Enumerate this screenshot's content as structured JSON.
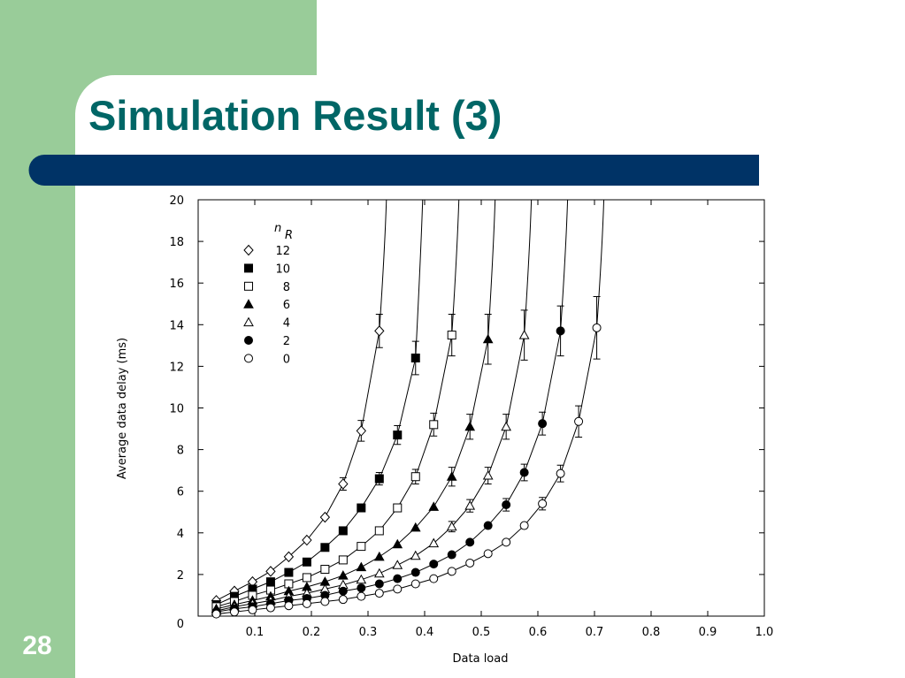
{
  "slide": {
    "title": "Simulation Result (3)",
    "number": 28
  },
  "chart_data": {
    "type": "line",
    "x_label": "Data load",
    "y_label": "Average data delay (ms)",
    "legend_title": [
      "n",
      "R"
    ],
    "xlim": [
      0,
      1
    ],
    "ylim": [
      0,
      20
    ],
    "xticks": [
      0.1,
      0.2,
      0.3,
      0.4,
      0.5,
      0.6,
      0.7,
      0.8,
      0.9,
      {
        "value": 1,
        "label": "1.0"
      }
    ],
    "yticks": [
      0,
      2,
      4,
      6,
      8,
      10,
      12,
      14,
      16,
      18,
      20
    ],
    "x": [
      0.032,
      0.064,
      0.096,
      0.128,
      0.16,
      0.192,
      0.224,
      0.256,
      0.288,
      0.32,
      0.352,
      0.384,
      0.416,
      0.448,
      0.48,
      0.512,
      0.544,
      0.576,
      0.608,
      0.64,
      0.672,
      0.704
    ],
    "series": [
      {
        "name": "12",
        "color": "#000000",
        "marker": "diamond",
        "filled": false,
        "values": [
          0.75,
          1.2,
          1.65,
          2.15,
          2.85,
          3.65,
          4.75,
          6.35,
          8.9,
          13.7,
          null,
          null,
          null,
          null,
          null,
          null,
          null,
          null,
          null,
          null,
          null,
          null
        ],
        "errors": [
          null,
          null,
          null,
          null,
          null,
          null,
          null,
          0.3,
          0.5,
          0.8,
          null,
          null,
          null,
          null,
          null,
          null,
          null,
          null,
          null,
          null,
          null,
          null
        ]
      },
      {
        "name": "10",
        "color": "#000000",
        "marker": "square",
        "filled": true,
        "values": [
          0.55,
          0.95,
          1.3,
          1.65,
          2.1,
          2.6,
          3.3,
          4.1,
          5.2,
          6.6,
          8.7,
          12.4,
          null,
          null,
          null,
          null,
          null,
          null,
          null,
          null,
          null,
          null
        ],
        "errors": [
          null,
          null,
          null,
          null,
          null,
          null,
          null,
          null,
          null,
          0.3,
          0.45,
          0.8,
          null,
          null,
          null,
          null,
          null,
          null,
          null,
          null,
          null,
          null
        ]
      },
      {
        "name": "8",
        "color": "#000000",
        "marker": "square",
        "filled": false,
        "values": [
          0.45,
          0.7,
          1.0,
          1.25,
          1.55,
          1.85,
          2.25,
          2.7,
          3.35,
          4.1,
          5.2,
          6.7,
          9.2,
          13.5,
          null,
          null,
          null,
          null,
          null,
          null,
          null,
          null
        ],
        "errors": [
          null,
          null,
          null,
          null,
          null,
          null,
          null,
          null,
          null,
          null,
          null,
          0.35,
          0.55,
          1.0,
          null,
          null,
          null,
          null,
          null,
          null,
          null,
          null
        ]
      },
      {
        "name": "6",
        "color": "#000000",
        "marker": "triangle",
        "filled": true,
        "values": [
          0.35,
          0.55,
          0.75,
          0.95,
          1.2,
          1.4,
          1.65,
          1.95,
          2.35,
          2.85,
          3.45,
          4.25,
          5.25,
          6.7,
          9.1,
          13.3,
          null,
          null,
          null,
          null,
          null,
          null
        ],
        "errors": [
          null,
          null,
          null,
          null,
          null,
          null,
          null,
          null,
          null,
          null,
          null,
          null,
          null,
          0.45,
          0.6,
          1.2,
          null,
          null,
          null,
          null,
          null,
          null
        ]
      },
      {
        "name": "4",
        "color": "#000000",
        "marker": "triangle",
        "filled": false,
        "values": [
          0.25,
          0.45,
          0.6,
          0.75,
          0.95,
          1.1,
          1.3,
          1.5,
          1.75,
          2.05,
          2.45,
          2.9,
          3.5,
          4.3,
          5.3,
          6.75,
          9.1,
          13.5,
          null,
          null,
          null,
          null
        ],
        "errors": [
          null,
          null,
          null,
          null,
          null,
          null,
          null,
          null,
          null,
          null,
          null,
          null,
          null,
          0.25,
          0.3,
          0.4,
          0.6,
          1.2,
          null,
          null,
          null,
          null
        ]
      },
      {
        "name": "2",
        "color": "#000000",
        "marker": "circle",
        "filled": true,
        "values": [
          0.2,
          0.35,
          0.45,
          0.6,
          0.75,
          0.85,
          1.0,
          1.2,
          1.35,
          1.55,
          1.8,
          2.1,
          2.5,
          2.95,
          3.55,
          4.35,
          5.35,
          6.9,
          9.25,
          13.7,
          null,
          null
        ],
        "errors": [
          null,
          null,
          null,
          null,
          null,
          null,
          null,
          null,
          null,
          null,
          null,
          null,
          null,
          null,
          null,
          null,
          0.3,
          0.4,
          0.55,
          1.2,
          null,
          null
        ]
      },
      {
        "name": "0",
        "color": "#000000",
        "marker": "circle",
        "filled": false,
        "values": [
          0.1,
          0.2,
          0.3,
          0.4,
          0.5,
          0.6,
          0.7,
          0.8,
          0.95,
          1.1,
          1.3,
          1.55,
          1.8,
          2.15,
          2.55,
          3.0,
          3.55,
          4.35,
          5.4,
          6.85,
          9.35,
          13.85
        ],
        "errors": [
          null,
          null,
          null,
          null,
          null,
          null,
          null,
          null,
          null,
          null,
          null,
          null,
          null,
          null,
          null,
          null,
          null,
          null,
          0.3,
          0.4,
          0.75,
          1.5
        ]
      }
    ]
  }
}
